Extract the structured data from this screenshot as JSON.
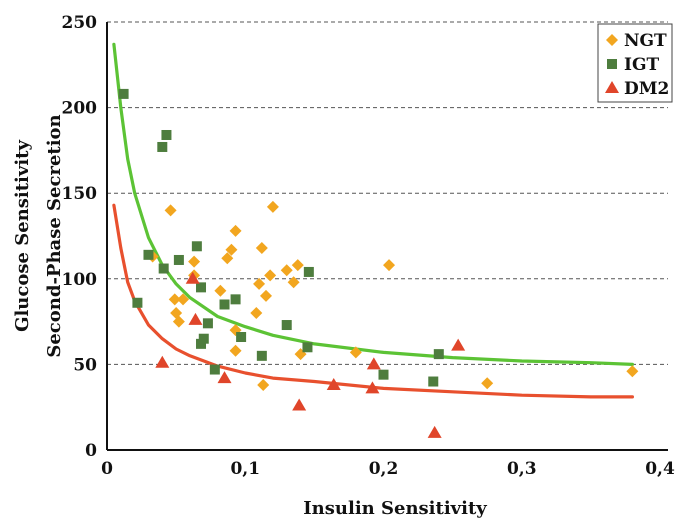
{
  "chart_data": {
    "type": "scatter",
    "xlabel": "Insulin Sensitivity",
    "ylabel_line1": "Glucose Sensitivity",
    "ylabel_line2": "Second-Phase Secretion",
    "xlim": [
      0,
      0.4
    ],
    "ylim": [
      0,
      250
    ],
    "x_ticks": [
      {
        "value": 0,
        "label": "0"
      },
      {
        "value": 0.1,
        "label": "0,1"
      },
      {
        "value": 0.2,
        "label": "0,2"
      },
      {
        "value": 0.3,
        "label": "0,3"
      },
      {
        "value": 0.4,
        "label": "0,4"
      }
    ],
    "y_ticks": [
      {
        "value": 0,
        "label": "0"
      },
      {
        "value": 50,
        "label": "50"
      },
      {
        "value": 100,
        "label": "100"
      },
      {
        "value": 150,
        "label": "150"
      },
      {
        "value": 200,
        "label": "200"
      },
      {
        "value": 250,
        "label": "250"
      }
    ],
    "grid": "horizontal dashed",
    "legend_position": "top-right",
    "series": [
      {
        "name": "NGT",
        "marker": "diamond",
        "color": "#F2A61F",
        "points": [
          [
            0.046,
            140
          ],
          [
            0.033,
            113
          ],
          [
            0.049,
            88
          ],
          [
            0.05,
            80
          ],
          [
            0.052,
            75
          ],
          [
            0.055,
            88
          ],
          [
            0.063,
            110
          ],
          [
            0.063,
            102
          ],
          [
            0.082,
            93
          ],
          [
            0.087,
            112
          ],
          [
            0.09,
            117
          ],
          [
            0.093,
            128
          ],
          [
            0.093,
            70
          ],
          [
            0.093,
            58
          ],
          [
            0.11,
            97
          ],
          [
            0.112,
            118
          ],
          [
            0.115,
            90
          ],
          [
            0.118,
            102
          ],
          [
            0.12,
            142
          ],
          [
            0.113,
            38
          ],
          [
            0.108,
            80
          ],
          [
            0.13,
            105
          ],
          [
            0.135,
            98
          ],
          [
            0.138,
            108
          ],
          [
            0.14,
            56
          ],
          [
            0.18,
            57
          ],
          [
            0.204,
            108
          ],
          [
            0.275,
            39
          ],
          [
            0.38,
            46
          ]
        ]
      },
      {
        "name": "IGT",
        "marker": "square",
        "color": "#4E7D3E",
        "points": [
          [
            0.012,
            208
          ],
          [
            0.04,
            177
          ],
          [
            0.043,
            184
          ],
          [
            0.041,
            106
          ],
          [
            0.052,
            111
          ],
          [
            0.03,
            114
          ],
          [
            0.022,
            86
          ],
          [
            0.065,
            119
          ],
          [
            0.068,
            95
          ],
          [
            0.068,
            62
          ],
          [
            0.07,
            65
          ],
          [
            0.073,
            74
          ],
          [
            0.078,
            47
          ],
          [
            0.085,
            85
          ],
          [
            0.093,
            88
          ],
          [
            0.097,
            66
          ],
          [
            0.112,
            55
          ],
          [
            0.13,
            73
          ],
          [
            0.145,
            60
          ],
          [
            0.146,
            104
          ],
          [
            0.2,
            44
          ],
          [
            0.236,
            40
          ],
          [
            0.24,
            56
          ]
        ]
      },
      {
        "name": "DM2",
        "marker": "triangle",
        "color": "#E0452A",
        "points": [
          [
            0.04,
            51
          ],
          [
            0.062,
            100
          ],
          [
            0.064,
            76
          ],
          [
            0.085,
            42
          ],
          [
            0.139,
            26
          ],
          [
            0.164,
            38
          ],
          [
            0.192,
            36
          ],
          [
            0.193,
            50
          ],
          [
            0.237,
            10
          ],
          [
            0.254,
            61
          ]
        ]
      }
    ],
    "curves": [
      {
        "color": "#5CC335",
        "x": [
          0.005,
          0.01,
          0.015,
          0.02,
          0.03,
          0.04,
          0.05,
          0.06,
          0.08,
          0.1,
          0.12,
          0.15,
          0.2,
          0.25,
          0.3,
          0.35,
          0.38
        ],
        "y": [
          237,
          200,
          170,
          150,
          124,
          108,
          97,
          89,
          78,
          72,
          67,
          62,
          57,
          54,
          52,
          51,
          50
        ]
      },
      {
        "color": "#E8502E",
        "x": [
          0.005,
          0.01,
          0.015,
          0.02,
          0.03,
          0.04,
          0.05,
          0.06,
          0.08,
          0.1,
          0.12,
          0.15,
          0.2,
          0.25,
          0.3,
          0.35,
          0.38
        ],
        "y": [
          143,
          118,
          98,
          87,
          73,
          65,
          59,
          55,
          49,
          45,
          42,
          40,
          36,
          34,
          32,
          31,
          31
        ]
      }
    ]
  }
}
